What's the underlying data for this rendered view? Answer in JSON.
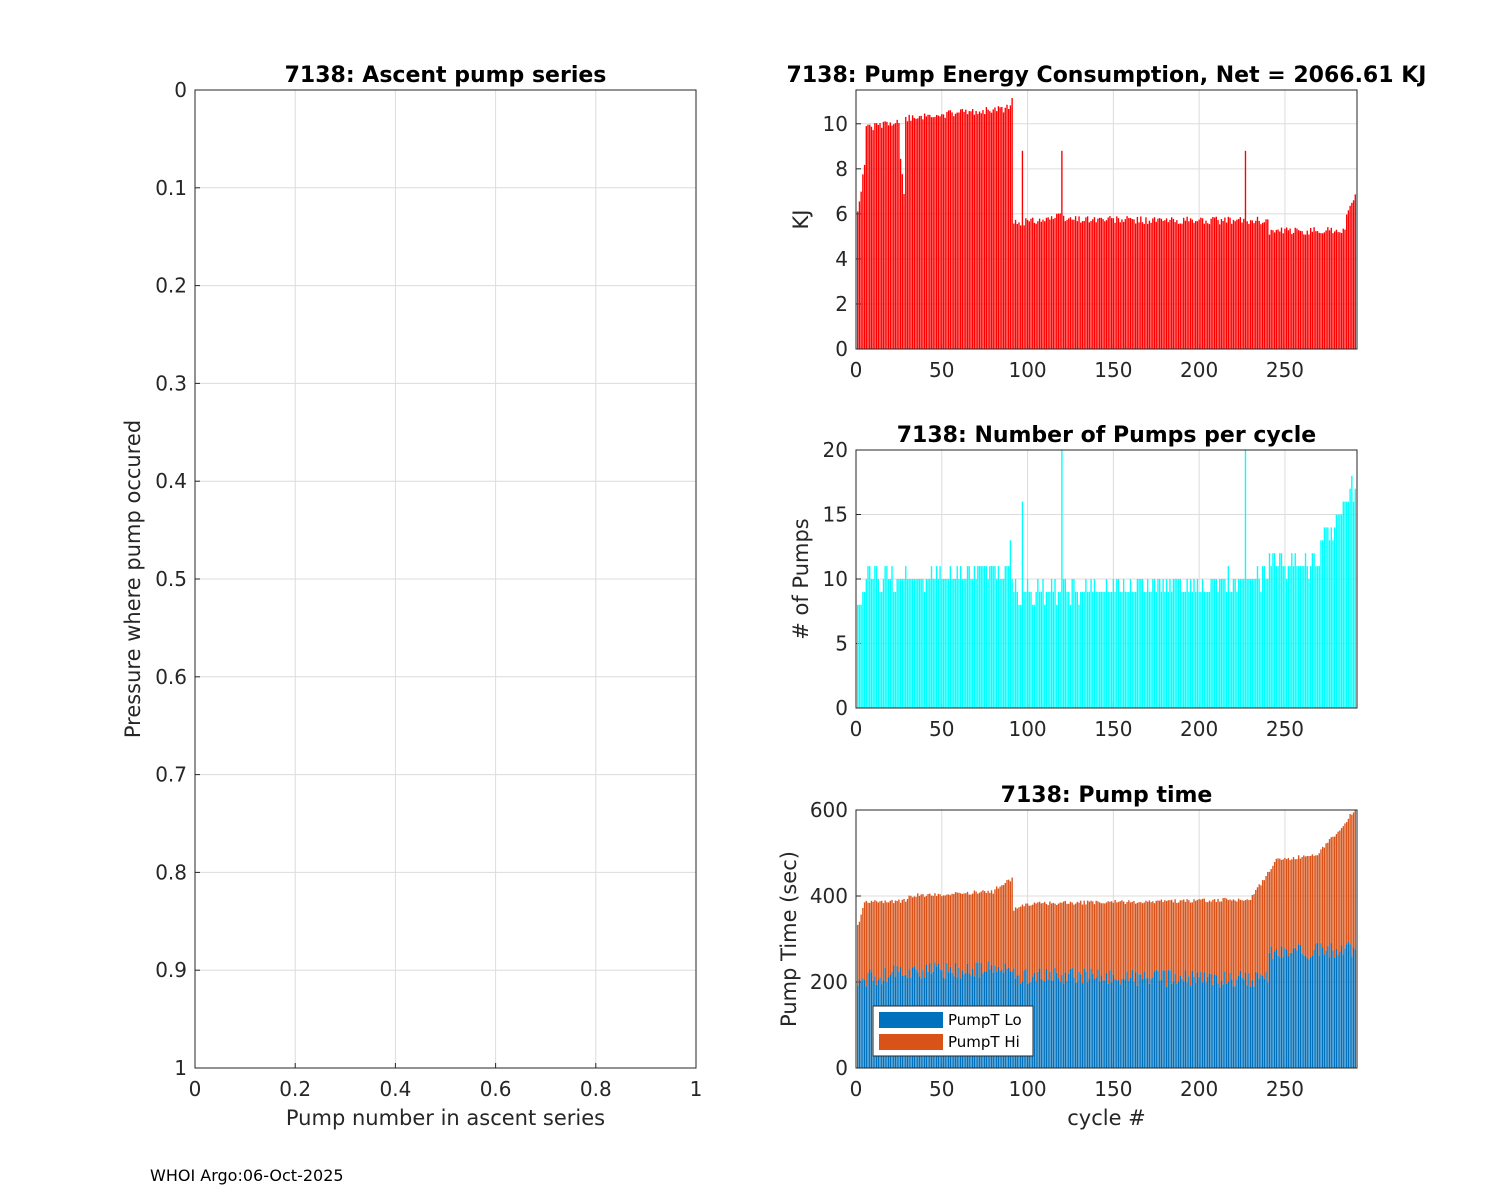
{
  "footer": "WHOI Argo:06-Oct-2025",
  "colors": {
    "energy": "#ff0000",
    "pumps": "#00ffff",
    "lo": "#0072bd",
    "hi": "#d95319",
    "grid": "#dcdcdc",
    "axis": "#262626"
  },
  "chart_data": [
    {
      "id": "ascent",
      "type": "scatter",
      "title": "7138: Ascent pump series",
      "xlabel": "Pump number in ascent series",
      "ylabel": "Pressure where pump occured",
      "xlim": [
        0,
        1
      ],
      "ylim": [
        0,
        1
      ],
      "y_reversed": true,
      "xticks": [
        "0",
        "0.2",
        "0.4",
        "0.6",
        "0.8",
        "1"
      ],
      "yticks": [
        "0",
        "0.1",
        "0.2",
        "0.3",
        "0.4",
        "0.5",
        "0.6",
        "0.7",
        "0.8",
        "0.9",
        "1"
      ],
      "grid": true,
      "points": []
    },
    {
      "id": "energy",
      "type": "bar",
      "title": "7138: Pump Energy Consumption,  Net = 2066.61 KJ",
      "xlabel": "",
      "ylabel": "KJ",
      "xlim": [
        0,
        292
      ],
      "ylim": [
        0,
        11.5
      ],
      "xticks": [
        "0",
        "50",
        "100",
        "150",
        "200",
        "250"
      ],
      "yticks": [
        "0",
        "2",
        "4",
        "6",
        "8",
        "10"
      ],
      "grid": true,
      "segments": [
        {
          "x": [
            1,
            5
          ],
          "y": [
            6.0,
            8.3
          ]
        },
        {
          "x": [
            5,
            25
          ],
          "y": [
            9.8,
            10.1
          ]
        },
        {
          "x": [
            25,
            28
          ],
          "y": [
            9.2,
            6.8
          ]
        },
        {
          "x": [
            28,
            50
          ],
          "y": [
            10.2,
            10.4
          ]
        },
        {
          "x": [
            50,
            90
          ],
          "y": [
            10.4,
            10.7
          ]
        },
        {
          "x": [
            90,
            91
          ],
          "y": [
            11.2,
            11.2
          ]
        },
        {
          "x": [
            92,
            120
          ],
          "y": [
            5.6,
            5.9
          ]
        },
        {
          "x": [
            120,
            180
          ],
          "y": [
            5.8,
            5.7
          ]
        },
        {
          "x": [
            180,
            240
          ],
          "y": [
            5.7,
            5.7
          ]
        },
        {
          "x": [
            240,
            285
          ],
          "y": [
            5.2,
            5.3
          ]
        },
        {
          "x": [
            285,
            291
          ],
          "y": [
            5.6,
            7.0
          ]
        }
      ],
      "spikes": [
        {
          "x": 97,
          "y": 8.8
        },
        {
          "x": 120,
          "y": 8.8
        },
        {
          "x": 227,
          "y": 8.8
        }
      ]
    },
    {
      "id": "pumps",
      "type": "bar",
      "title": "7138: Number of Pumps per cycle",
      "xlabel": "",
      "ylabel": "# of Pumps",
      "xlim": [
        0,
        292
      ],
      "ylim": [
        0,
        20
      ],
      "xticks": [
        "0",
        "50",
        "100",
        "150",
        "200",
        "250"
      ],
      "yticks": [
        "0",
        "5",
        "10",
        "15",
        "20"
      ],
      "grid": true,
      "segments": [
        {
          "x": [
            1,
            5
          ],
          "y": [
            7,
            9
          ]
        },
        {
          "x": [
            5,
            50
          ],
          "y": [
            10,
            10
          ]
        },
        {
          "x": [
            50,
            90
          ],
          "y": [
            10,
            11
          ]
        },
        {
          "x": [
            90,
            110
          ],
          "y": [
            9,
            9
          ]
        },
        {
          "x": [
            110,
            240
          ],
          "y": [
            9,
            10
          ]
        },
        {
          "x": [
            240,
            270
          ],
          "y": [
            11,
            11
          ]
        },
        {
          "x": [
            270,
            291
          ],
          "y": [
            12,
            17
          ]
        }
      ],
      "spikes": [
        {
          "x": 90,
          "y": 13
        },
        {
          "x": 97,
          "y": 16
        },
        {
          "x": 120,
          "y": 20
        },
        {
          "x": 227,
          "y": 20
        },
        {
          "x": 289,
          "y": 18
        }
      ]
    },
    {
      "id": "pumptime",
      "type": "bar",
      "stacked": true,
      "title": "7138: Pump time",
      "xlabel": "cycle #",
      "ylabel": "Pump Time (sec)",
      "xlim": [
        0,
        292
      ],
      "ylim": [
        0,
        600
      ],
      "xticks": [
        "0",
        "50",
        "100",
        "150",
        "200",
        "250"
      ],
      "yticks": [
        "0",
        "200",
        "400",
        "600"
      ],
      "grid": true,
      "legend": {
        "position": "bottom-left",
        "entries": [
          "PumpT Lo",
          "PumpT Hi"
        ]
      },
      "series": [
        {
          "name": "PumpT Lo",
          "segments": [
            {
              "x": [
                1,
                30
              ],
              "y": [
                205,
                225
              ]
            },
            {
              "x": [
                30,
                90
              ],
              "y": [
                225,
                230
              ]
            },
            {
              "x": [
                90,
                240
              ],
              "y": [
                215,
                205
              ]
            },
            {
              "x": [
                240,
                291
              ],
              "y": [
                270,
                275
              ]
            }
          ]
        },
        {
          "name": "PumpT Hi",
          "segments": [
            {
              "x": [
                1,
                5
              ],
              "y": [
                330,
                385
              ]
            },
            {
              "x": [
                5,
                30
              ],
              "y": [
                385,
                390
              ]
            },
            {
              "x": [
                30,
                80
              ],
              "y": [
                400,
                410
              ]
            },
            {
              "x": [
                80,
                91
              ],
              "y": [
                415,
                440
              ]
            },
            {
              "x": [
                92,
                100
              ],
              "y": [
                370,
                380
              ]
            },
            {
              "x": [
                100,
                230
              ],
              "y": [
                382,
                392
              ]
            },
            {
              "x": [
                230,
                245
              ],
              "y": [
                392,
                485
              ]
            },
            {
              "x": [
                245,
                270
              ],
              "y": [
                485,
                495
              ]
            },
            {
              "x": [
                270,
                291
              ],
              "y": [
                500,
                600
              ]
            }
          ]
        }
      ]
    }
  ]
}
